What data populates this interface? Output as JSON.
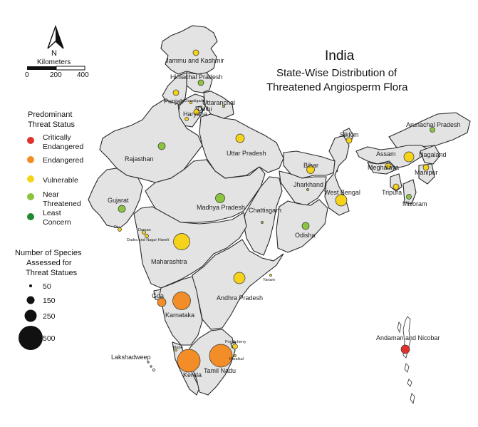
{
  "title": "India",
  "subtitle_line1": "State-Wise Distribution of",
  "subtitle_line2": "Threatened Angiosperm Flora",
  "north_label": "N",
  "scale": {
    "title": "Kilometers",
    "ticks": [
      "0",
      "200",
      "400"
    ]
  },
  "legend_status": {
    "title_line1": "Predominant",
    "title_line2": "Threat Status",
    "items": [
      {
        "label_line1": "Critically",
        "label_line2": "Endangered",
        "color": "#e0312a"
      },
      {
        "label_line1": "Endangered",
        "label_line2": "",
        "color": "#f28d27"
      },
      {
        "label_line1": "Vulnerable",
        "label_line2": "",
        "color": "#f5d31b"
      },
      {
        "label_line1": "Near",
        "label_line2": "Threatened",
        "color": "#8cc43f"
      },
      {
        "label_line1": "Least",
        "label_line2": "Concern",
        "color": "#1f8a2f"
      }
    ]
  },
  "legend_size": {
    "title_line1": "Number of Species",
    "title_line2": "Assessed for",
    "title_line3": "Threat Statues",
    "items": [
      {
        "label": "50",
        "value": 50
      },
      {
        "label": "150",
        "value": 150
      },
      {
        "label": "250",
        "value": 250
      },
      {
        "label": "500",
        "value": 500
      }
    ]
  },
  "state_labels": {
    "jk": "Jammu and Kashmir",
    "hp": "Himachal Pradesh",
    "punjab": "Punjab",
    "chandigarh": "Chandigarh",
    "uttaranchal": "Uttaranchal",
    "haryana": "Haryana",
    "delhi": "Delhi",
    "rajasthan": "Rajasthan",
    "up": "Uttar Pradesh",
    "sikkim": "Sikkim",
    "arunachal": "Arunachal Pradesh",
    "assam": "Assam",
    "meghalaya": "Meghalaya",
    "nagaland": "Nagaland",
    "manipur": "Manipur",
    "tripura": "Tripura",
    "mizoram": "Mizoram",
    "bihar": "Bihar",
    "jharkhand": "Jharkhand",
    "wb": "West Bengal",
    "gujarat": "Gujarat",
    "mp": "Madhya Pradesh",
    "chattisgarh": "Chattisgarh",
    "odisha": "Odisha",
    "diu": "Diu",
    "daman": "Daman",
    "dnh": "Dadra and Nagar Haveli",
    "maharashtra": "Maharashtra",
    "ap": "Andhra Pradesh",
    "yanam": "Yanam",
    "goa": "Goa",
    "karnataka": "Karnataka",
    "mahe": "Mahe",
    "puducherry": "Pondicherry",
    "karaikal": "Karaikal",
    "kerala": "Kerala",
    "tn": "Tamil Nadu",
    "lakshadweep": "Lakshadweep",
    "andaman": "Andaman and Nicobar"
  }
}
